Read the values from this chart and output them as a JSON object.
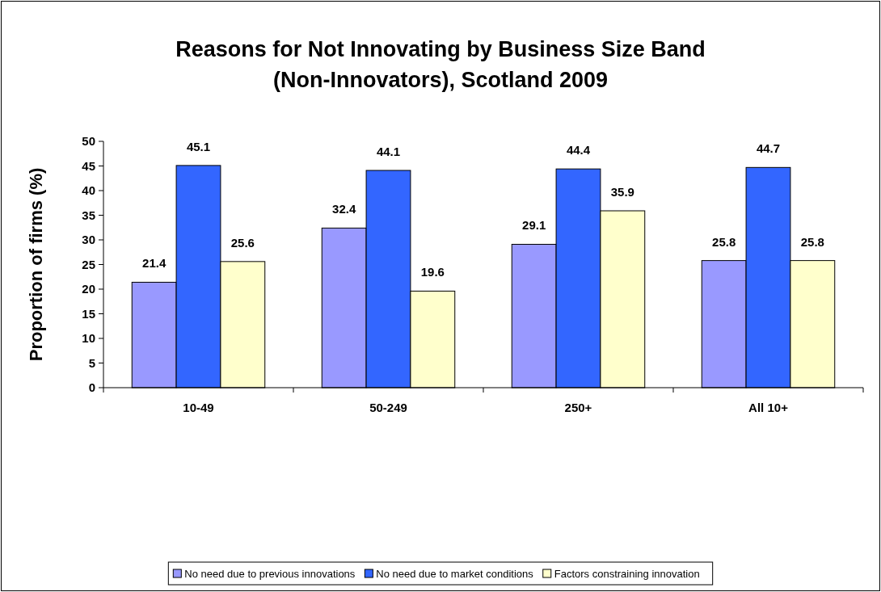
{
  "chart_data": {
    "type": "bar",
    "title": "Reasons for Not Innovating by Business Size Band (Non-Innovators), Scotland 2009",
    "ylabel": "Proportion of firms (%)",
    "categories": [
      "10-49",
      "50-249",
      "250+",
      "All 10+"
    ],
    "series": [
      {
        "name": "No need due to previous innovations",
        "color": "#9999ff",
        "values": [
          21.4,
          32.4,
          29.1,
          25.8
        ]
      },
      {
        "name": "No need due to market conditions",
        "color": "#3366ff",
        "values": [
          45.1,
          44.1,
          44.4,
          44.7
        ]
      },
      {
        "name": "Factors constraining innovation",
        "color": "#ffffcc",
        "values": [
          25.6,
          19.6,
          35.9,
          25.8
        ]
      }
    ],
    "ylim": [
      0,
      50
    ],
    "yticks": [
      0,
      5,
      10,
      15,
      20,
      25,
      30,
      35,
      40,
      45,
      50
    ],
    "grid": false,
    "data_labels": true,
    "legend": "bottom"
  }
}
